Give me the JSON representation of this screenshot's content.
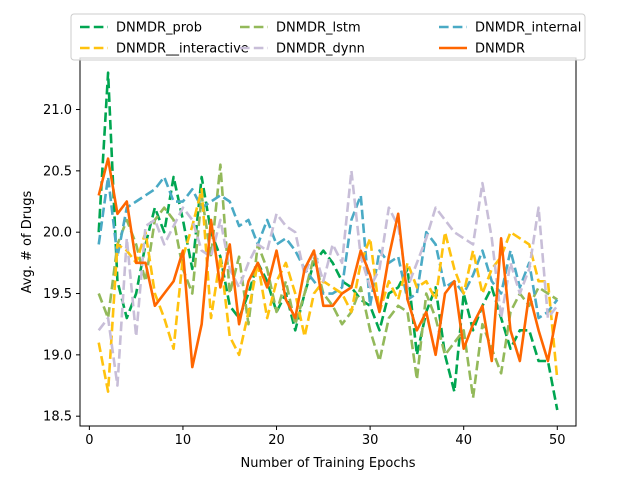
{
  "chart_data": {
    "type": "line",
    "title": "",
    "xlabel": "Number of Training Epochs",
    "ylabel": "Avg. # of Drugs",
    "xlim": [
      -1,
      52
    ],
    "ylim": [
      18.42,
      21.42
    ],
    "xticks": [
      0,
      10,
      20,
      30,
      40,
      50
    ],
    "xtick_labels": [
      "0",
      "10",
      "20",
      "30",
      "40",
      "50"
    ],
    "yticks": [
      18.5,
      19.0,
      19.5,
      20.0,
      20.5,
      21.0
    ],
    "ytick_labels": [
      "18.5",
      "19.0",
      "19.5",
      "20.0",
      "20.5",
      "21.0"
    ],
    "grid": false,
    "legend_position": "top-center",
    "x": [
      1,
      2,
      3,
      4,
      5,
      6,
      7,
      8,
      9,
      10,
      11,
      12,
      13,
      14,
      15,
      16,
      17,
      18,
      19,
      20,
      21,
      22,
      23,
      24,
      25,
      26,
      27,
      28,
      29,
      30,
      31,
      32,
      33,
      34,
      35,
      36,
      37,
      38,
      39,
      40,
      41,
      42,
      43,
      44,
      45,
      46,
      47,
      48,
      49,
      50
    ],
    "series": [
      {
        "name": "DNMDR_prob",
        "color": "#00a651",
        "dash": "dashed",
        "values": [
          20.0,
          21.3,
          19.6,
          19.3,
          19.5,
          19.9,
          20.2,
          20.0,
          20.45,
          20.1,
          19.7,
          20.45,
          20.0,
          19.8,
          19.4,
          19.3,
          19.5,
          19.75,
          19.6,
          19.35,
          19.5,
          19.2,
          19.5,
          19.75,
          19.85,
          19.75,
          19.6,
          19.55,
          19.45,
          19.4,
          19.2,
          19.5,
          19.55,
          19.7,
          19.0,
          19.35,
          19.55,
          19.0,
          18.7,
          19.5,
          19.2,
          19.4,
          19.55,
          19.3,
          19.05,
          19.2,
          19.2,
          18.95,
          18.95,
          18.55
        ]
      },
      {
        "name": "DNMDR_lstm",
        "color": "#93b95a",
        "dash": "dashed",
        "values": [
          19.5,
          19.3,
          19.9,
          20.1,
          19.9,
          19.6,
          20.1,
          20.2,
          20.1,
          19.7,
          19.5,
          20.3,
          19.8,
          20.55,
          19.5,
          19.8,
          19.25,
          19.9,
          19.7,
          19.35,
          19.6,
          19.25,
          19.5,
          19.8,
          19.5,
          19.4,
          19.25,
          19.35,
          19.55,
          19.2,
          18.95,
          19.3,
          19.4,
          19.35,
          18.8,
          19.5,
          19.3,
          19.0,
          19.1,
          19.2,
          18.65,
          19.25,
          19.05,
          18.85,
          19.35,
          19.5,
          19.4,
          19.55,
          19.5,
          19.45
        ]
      },
      {
        "name": "DNMDR_internal",
        "color": "#4aaac5",
        "dash": "dashed",
        "values": [
          19.9,
          20.45,
          19.8,
          20.2,
          20.25,
          20.3,
          20.35,
          20.45,
          20.25,
          20.25,
          20.35,
          20.2,
          20.25,
          20.3,
          20.25,
          20.05,
          20.1,
          19.9,
          20.1,
          19.9,
          19.95,
          19.85,
          19.7,
          19.6,
          19.5,
          19.5,
          19.55,
          20.1,
          20.3,
          19.4,
          19.85,
          19.75,
          19.8,
          19.45,
          19.5,
          20.0,
          19.9,
          19.55,
          19.6,
          19.5,
          19.65,
          19.85,
          19.6,
          19.5,
          19.85,
          19.55,
          19.75,
          19.3,
          19.35,
          19.45
        ]
      },
      {
        "name": "DNMDR__interactive",
        "color": "#ffc20e",
        "dash": "dashed",
        "values": [
          19.1,
          18.7,
          19.9,
          19.85,
          19.75,
          20.0,
          19.5,
          19.3,
          19.05,
          19.8,
          20.05,
          20.35,
          19.3,
          19.8,
          19.15,
          19.0,
          19.35,
          19.75,
          19.3,
          19.6,
          19.75,
          19.5,
          19.15,
          19.5,
          19.6,
          19.55,
          19.5,
          19.35,
          19.75,
          19.95,
          19.35,
          19.6,
          19.45,
          19.75,
          19.55,
          19.6,
          19.45,
          20.0,
          19.7,
          19.5,
          19.85,
          19.5,
          19.7,
          19.8,
          20.0,
          19.95,
          19.9,
          19.6,
          19.6,
          18.8
        ]
      },
      {
        "name": "DNMDR_dynn",
        "color": "#c8bed8",
        "dash": "dashed",
        "values": [
          19.2,
          19.3,
          18.75,
          19.95,
          19.15,
          20.05,
          20.1,
          19.9,
          20.05,
          20.2,
          20.1,
          19.85,
          19.8,
          20.1,
          19.7,
          19.55,
          19.75,
          19.9,
          19.85,
          20.15,
          20.05,
          20.0,
          19.65,
          19.85,
          19.6,
          19.9,
          19.75,
          20.5,
          19.8,
          19.55,
          19.7,
          20.2,
          20.05,
          19.55,
          19.75,
          19.95,
          20.2,
          20.1,
          20.0,
          19.95,
          19.9,
          20.4,
          19.95,
          19.3,
          19.75,
          19.5,
          19.7,
          20.2,
          19.3,
          19.4
        ]
      },
      {
        "name": "DNMDR",
        "color": "#ff6600",
        "dash": "solid",
        "values": [
          20.3,
          20.6,
          20.15,
          20.25,
          19.75,
          19.75,
          19.4,
          19.5,
          19.6,
          19.85,
          18.9,
          19.25,
          20.1,
          19.55,
          19.9,
          19.25,
          19.6,
          19.75,
          19.55,
          19.85,
          19.45,
          19.3,
          19.7,
          19.85,
          19.4,
          19.4,
          19.5,
          19.55,
          19.85,
          19.65,
          19.35,
          19.8,
          20.15,
          19.45,
          19.2,
          19.35,
          19.0,
          19.5,
          19.6,
          19.05,
          19.25,
          19.4,
          18.95,
          19.95,
          19.2,
          18.95,
          19.5,
          19.2,
          18.95,
          19.35
        ]
      }
    ]
  }
}
